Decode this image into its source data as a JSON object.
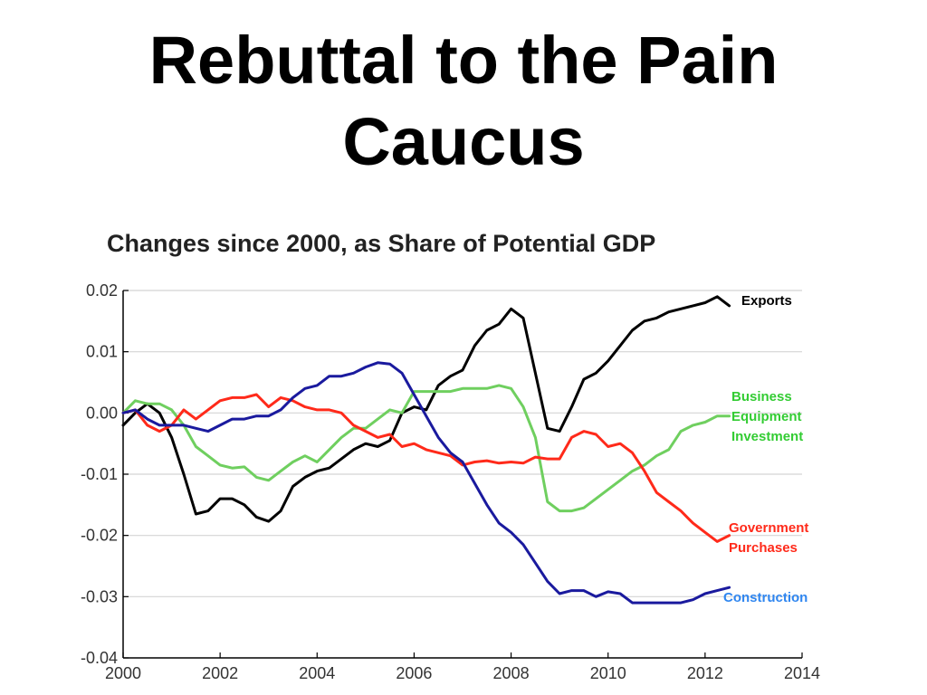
{
  "slide": {
    "title_line1": "Rebuttal to the Pain",
    "title_line2": "Caucus"
  },
  "chart_data": {
    "type": "line",
    "title": "Changes since 2000, as Share of Potential GDP",
    "xlabel": "",
    "ylabel": "",
    "xlim": [
      2000,
      2014
    ],
    "ylim": [
      -0.04,
      0.02
    ],
    "xticks": [
      2000,
      2002,
      2004,
      2006,
      2008,
      2010,
      2012,
      2014
    ],
    "yticks": [
      0.02,
      0.01,
      0.0,
      -0.01,
      -0.02,
      -0.03,
      -0.04
    ],
    "ytick_labels": [
      "0.02",
      "0.01",
      "0.00",
      "-0.01",
      "-0.02",
      "-0.03",
      "-0.04"
    ],
    "xtick_labels": [
      "2000",
      "2002",
      "2004",
      "2006",
      "2008",
      "2010",
      "2012",
      "2014"
    ],
    "grid": "horizontal",
    "series": [
      {
        "name": "Exports",
        "label_lines": [
          "Exports"
        ],
        "color": "#000000",
        "label_color": "#000000",
        "x": [
          2000.0,
          2000.25,
          2000.5,
          2000.75,
          2001.0,
          2001.25,
          2001.5,
          2001.75,
          2002.0,
          2002.25,
          2002.5,
          2002.75,
          2003.0,
          2003.25,
          2003.5,
          2003.75,
          2004.0,
          2004.25,
          2004.5,
          2004.75,
          2005.0,
          2005.25,
          2005.5,
          2005.75,
          2006.0,
          2006.25,
          2006.5,
          2006.75,
          2007.0,
          2007.25,
          2007.5,
          2007.75,
          2008.0,
          2008.25,
          2008.5,
          2008.75,
          2009.0,
          2009.25,
          2009.5,
          2009.75,
          2010.0,
          2010.25,
          2010.5,
          2010.75,
          2011.0,
          2011.25,
          2011.5,
          2011.75,
          2012.0,
          2012.25,
          2012.5
        ],
        "values": [
          -0.002,
          0.0,
          0.0015,
          0.0,
          -0.004,
          -0.01,
          -0.0165,
          -0.016,
          -0.014,
          -0.014,
          -0.015,
          -0.017,
          -0.0177,
          -0.016,
          -0.012,
          -0.0105,
          -0.0095,
          -0.009,
          -0.0075,
          -0.006,
          -0.005,
          -0.0055,
          -0.0045,
          0.0,
          0.001,
          0.0005,
          0.0045,
          0.006,
          0.007,
          0.011,
          0.0135,
          0.0145,
          0.017,
          0.0155,
          0.0065,
          -0.0025,
          -0.003,
          0.001,
          0.0055,
          0.0065,
          0.0085,
          0.011,
          0.0135,
          0.015,
          0.0155,
          0.0165,
          0.017,
          0.0175,
          0.018,
          0.019,
          0.0175
        ]
      },
      {
        "name": "Business Equipment Investment",
        "label_lines": [
          "Business",
          "Equipment",
          "Investment"
        ],
        "color": "#6fcf5f",
        "label_color": "#33cc33",
        "x": [
          2000.0,
          2000.25,
          2000.5,
          2000.75,
          2001.0,
          2001.25,
          2001.5,
          2001.75,
          2002.0,
          2002.25,
          2002.5,
          2002.75,
          2003.0,
          2003.25,
          2003.5,
          2003.75,
          2004.0,
          2004.25,
          2004.5,
          2004.75,
          2005.0,
          2005.25,
          2005.5,
          2005.75,
          2006.0,
          2006.25,
          2006.5,
          2006.75,
          2007.0,
          2007.25,
          2007.5,
          2007.75,
          2008.0,
          2008.25,
          2008.5,
          2008.75,
          2009.0,
          2009.25,
          2009.5,
          2009.75,
          2010.0,
          2010.25,
          2010.5,
          2010.75,
          2011.0,
          2011.25,
          2011.5,
          2011.75,
          2012.0,
          2012.25,
          2012.5
        ],
        "values": [
          0.0,
          0.002,
          0.0015,
          0.0015,
          0.0005,
          -0.002,
          -0.0055,
          -0.007,
          -0.0085,
          -0.009,
          -0.0088,
          -0.0105,
          -0.011,
          -0.0095,
          -0.008,
          -0.007,
          -0.008,
          -0.006,
          -0.004,
          -0.0025,
          -0.0025,
          -0.001,
          0.0005,
          0.0,
          0.0035,
          0.0035,
          0.0035,
          0.0035,
          0.004,
          0.004,
          0.004,
          0.0045,
          0.004,
          0.001,
          -0.004,
          -0.0145,
          -0.016,
          -0.016,
          -0.0155,
          -0.014,
          -0.0125,
          -0.011,
          -0.0095,
          -0.0085,
          -0.007,
          -0.006,
          -0.003,
          -0.002,
          -0.0015,
          -0.0005,
          -0.0005
        ]
      },
      {
        "name": "Government Purchases",
        "label_lines": [
          "Government",
          "Purchases"
        ],
        "color": "#ff2a1a",
        "label_color": "#ff2a1a",
        "x": [
          2000.0,
          2000.25,
          2000.5,
          2000.75,
          2001.0,
          2001.25,
          2001.5,
          2001.75,
          2002.0,
          2002.25,
          2002.5,
          2002.75,
          2003.0,
          2003.25,
          2003.5,
          2003.75,
          2004.0,
          2004.25,
          2004.5,
          2004.75,
          2005.0,
          2005.25,
          2005.5,
          2005.75,
          2006.0,
          2006.25,
          2006.5,
          2006.75,
          2007.0,
          2007.25,
          2007.5,
          2007.75,
          2008.0,
          2008.25,
          2008.5,
          2008.75,
          2009.0,
          2009.25,
          2009.5,
          2009.75,
          2010.0,
          2010.25,
          2010.5,
          2010.75,
          2011.0,
          2011.25,
          2011.5,
          2011.75,
          2012.0,
          2012.25,
          2012.5
        ],
        "values": [
          0.0,
          0.0005,
          -0.002,
          -0.003,
          -0.002,
          0.0005,
          -0.001,
          0.0005,
          0.002,
          0.0025,
          0.0025,
          0.003,
          0.001,
          0.0025,
          0.002,
          0.001,
          0.0005,
          0.0005,
          0.0,
          -0.002,
          -0.003,
          -0.004,
          -0.0035,
          -0.0055,
          -0.005,
          -0.006,
          -0.0065,
          -0.007,
          -0.0085,
          -0.008,
          -0.0078,
          -0.0082,
          -0.008,
          -0.0082,
          -0.0072,
          -0.0075,
          -0.0075,
          -0.004,
          -0.003,
          -0.0035,
          -0.0055,
          -0.005,
          -0.0065,
          -0.0095,
          -0.013,
          -0.0145,
          -0.016,
          -0.018,
          -0.0195,
          -0.021,
          -0.02
        ]
      },
      {
        "name": "Construction",
        "label_lines": [
          "Construction"
        ],
        "color": "#1a1a9e",
        "label_color": "#2f86f0",
        "x": [
          2000.0,
          2000.25,
          2000.5,
          2000.75,
          2001.0,
          2001.25,
          2001.5,
          2001.75,
          2002.0,
          2002.25,
          2002.5,
          2002.75,
          2003.0,
          2003.25,
          2003.5,
          2003.75,
          2004.0,
          2004.25,
          2004.5,
          2004.75,
          2005.0,
          2005.25,
          2005.5,
          2005.75,
          2006.0,
          2006.25,
          2006.5,
          2006.75,
          2007.0,
          2007.25,
          2007.5,
          2007.75,
          2008.0,
          2008.25,
          2008.5,
          2008.75,
          2009.0,
          2009.25,
          2009.5,
          2009.75,
          2010.0,
          2010.25,
          2010.5,
          2010.75,
          2011.0,
          2011.25,
          2011.5,
          2011.75,
          2012.0,
          2012.25,
          2012.5
        ],
        "values": [
          0.0,
          0.0005,
          -0.001,
          -0.002,
          -0.002,
          -0.002,
          -0.0025,
          -0.003,
          -0.002,
          -0.001,
          -0.001,
          -0.0005,
          -0.0005,
          0.0005,
          0.0025,
          0.004,
          0.0045,
          0.006,
          0.006,
          0.0065,
          0.0075,
          0.0082,
          0.008,
          0.0065,
          0.003,
          -0.0005,
          -0.004,
          -0.0065,
          -0.008,
          -0.0115,
          -0.015,
          -0.018,
          -0.0195,
          -0.0215,
          -0.0245,
          -0.0275,
          -0.0295,
          -0.029,
          -0.029,
          -0.03,
          -0.0292,
          -0.0295,
          -0.031,
          -0.031,
          -0.031,
          -0.031,
          -0.031,
          -0.0305,
          -0.0295,
          -0.029,
          -0.0285
        ]
      }
    ]
  }
}
